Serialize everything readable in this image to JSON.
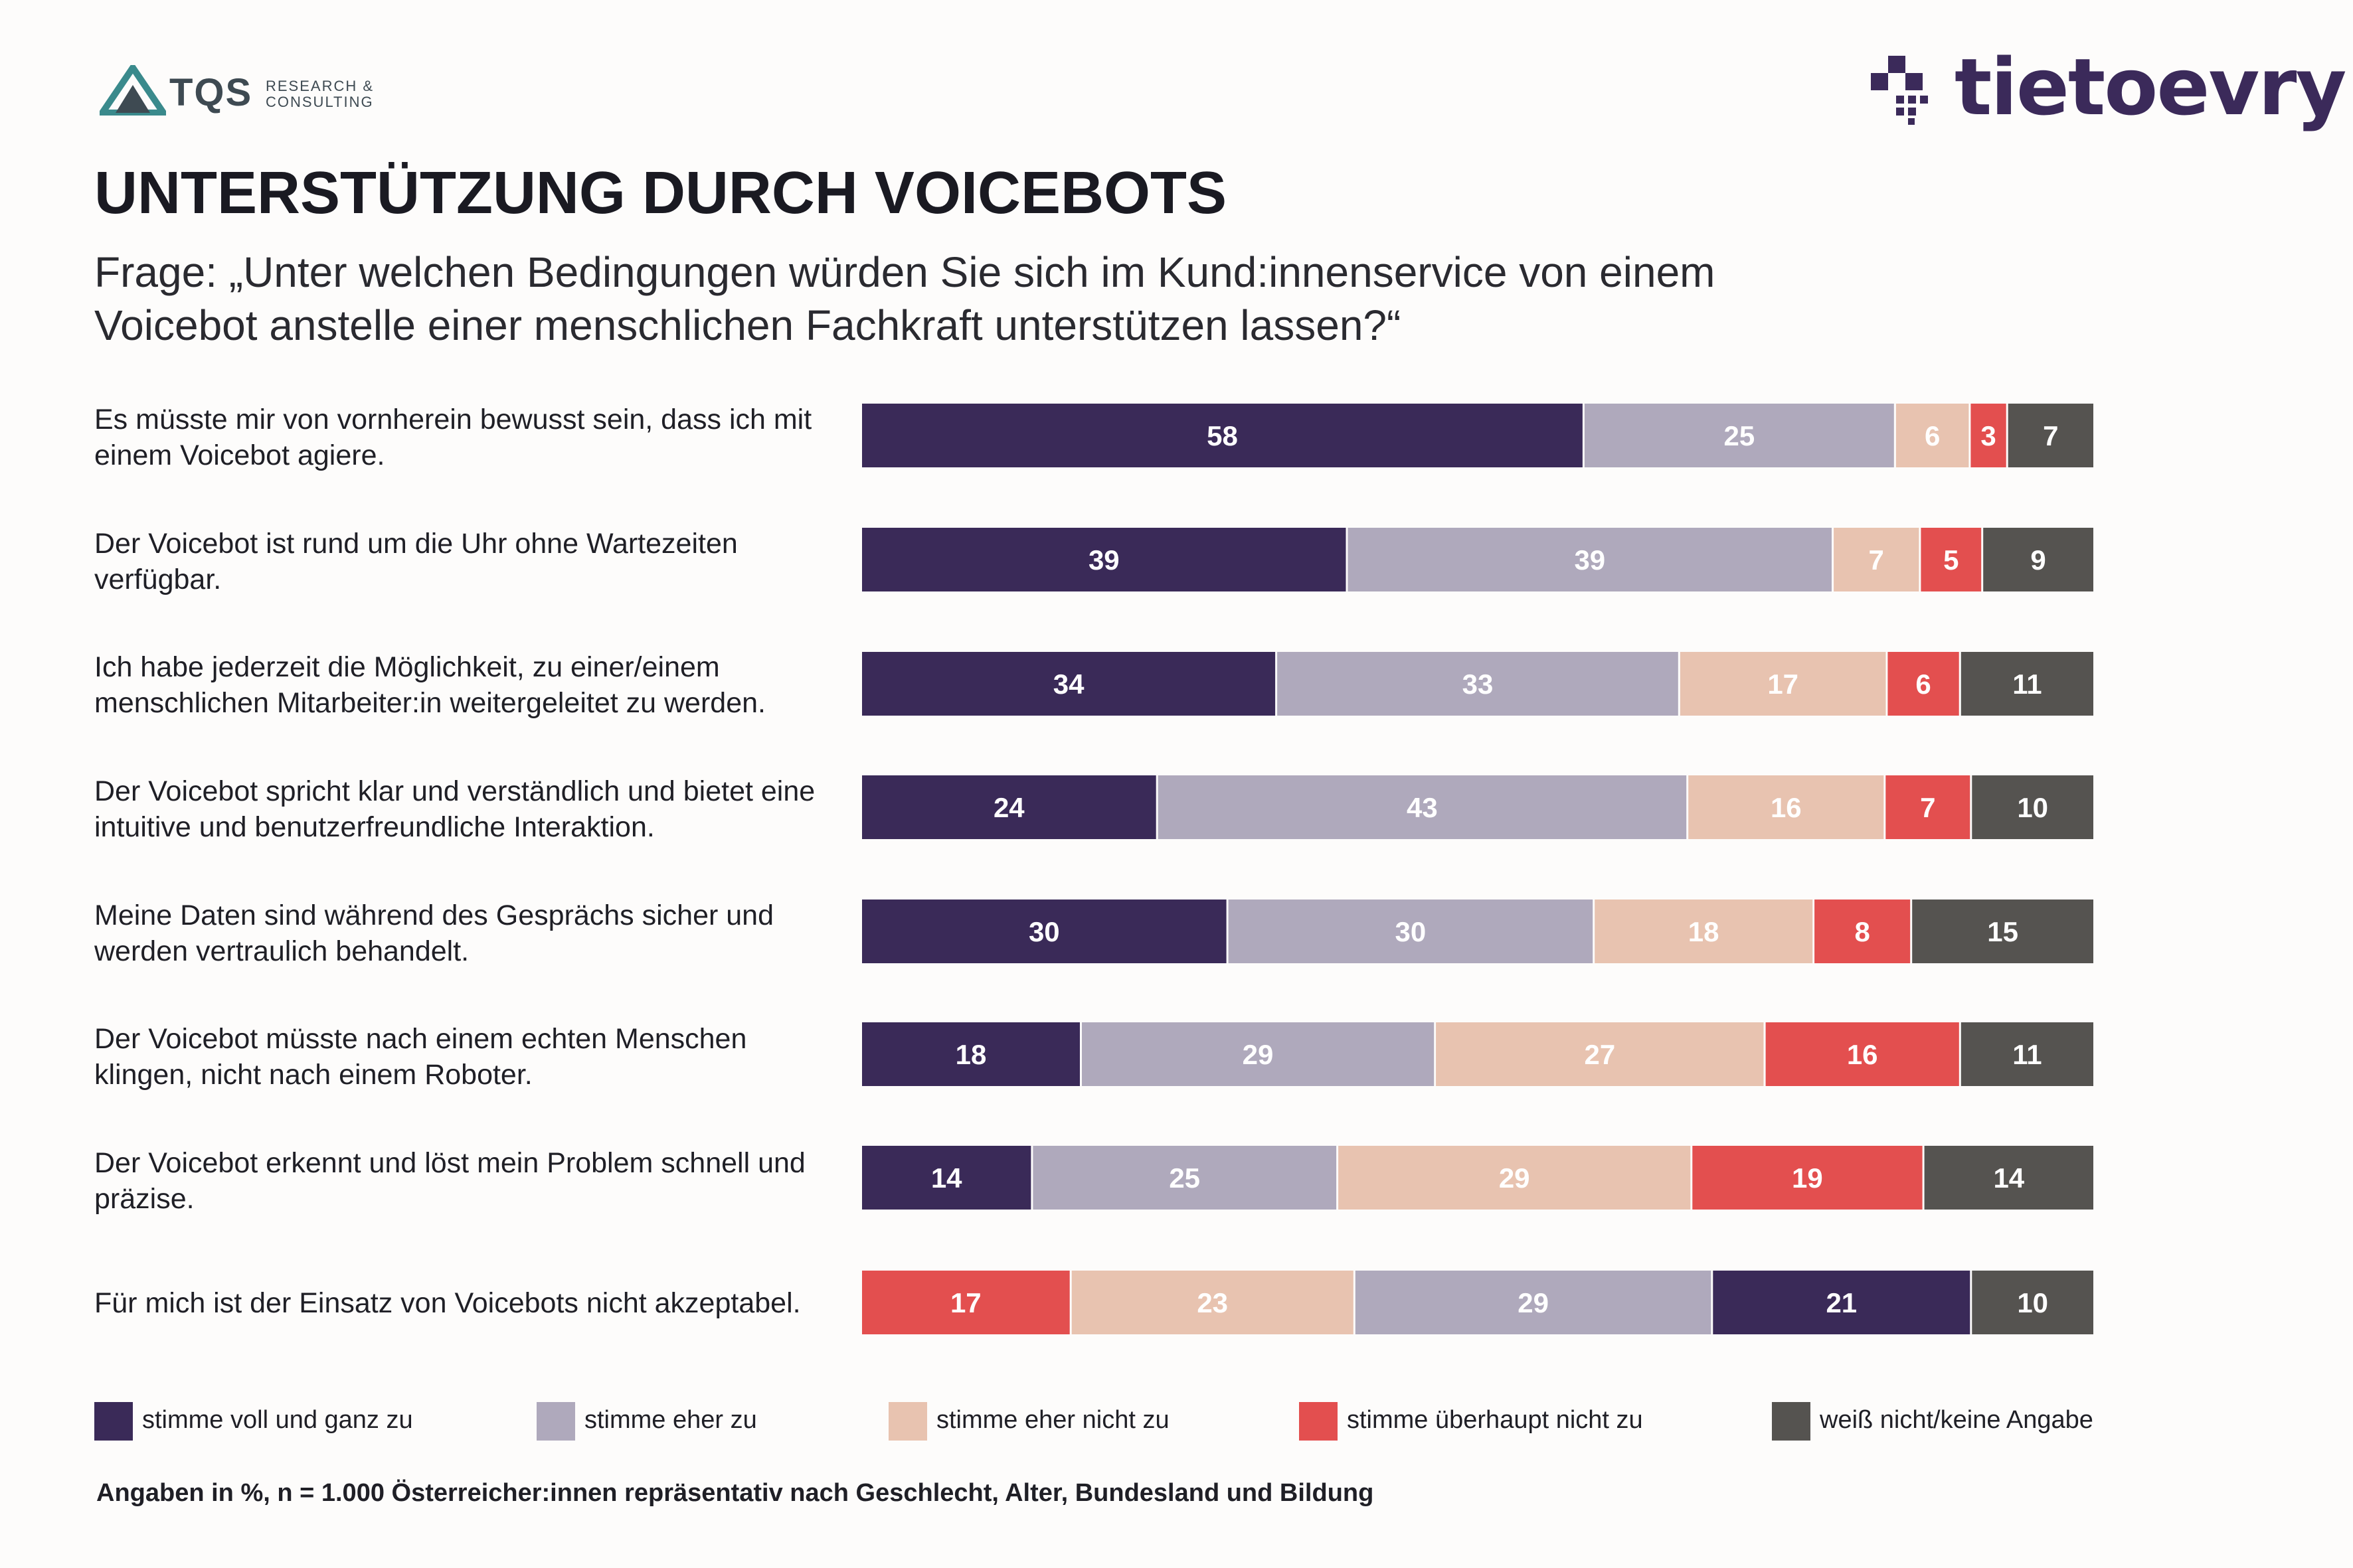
{
  "brand": {
    "tqs_word": "TQS",
    "tqs_sub_1": "RESEARCH &",
    "tqs_sub_2": "CONSULTING",
    "tieto_word": "tietoevry"
  },
  "chart_data": {
    "type": "bar",
    "orientation": "horizontal",
    "stacked": true,
    "title": "UNTERSTÜTZUNG DURCH VOICEBOTS",
    "subtitle": "Frage: „Unter welchen Bedingungen würden Sie sich im Kund:innenservice von einem Voicebot anstelle einer menschlichen Fachkraft unterstützen lassen?“",
    "categories": [
      "Es müsste mir von vornherein bewusst sein, dass ich mit einem Voicebot agiere.",
      "Der Voicebot ist rund um die Uhr ohne Wartezeiten verfügbar.",
      "Ich habe jederzeit die Möglichkeit, zu einer/einem menschlichen Mitarbeiter:in weitergeleitet zu werden.",
      "Der Voicebot spricht klar und verständlich und bietet eine intuitive und benutzerfreundliche Interaktion.",
      "Meine Daten sind während des Gesprächs sicher und werden vertraulich behandelt.",
      "Der Voicebot müsste nach einem echten Menschen klingen, nicht nach einem Roboter.",
      "Der Voicebot erkennt und löst mein Problem schnell und präzise.",
      "Für mich ist der Einsatz von Voicebots nicht akzeptabel."
    ],
    "series": [
      {
        "name": "stimme voll und ganz zu",
        "color": "#3a2a58",
        "values": [
          58,
          39,
          34,
          24,
          30,
          18,
          14,
          21
        ]
      },
      {
        "name": "stimme eher zu",
        "color": "#afa9bc",
        "values": [
          25,
          39,
          33,
          43,
          30,
          29,
          25,
          29
        ]
      },
      {
        "name": "stimme eher nicht zu",
        "color": "#e8c3b0",
        "values": [
          6,
          7,
          17,
          16,
          18,
          27,
          29,
          23
        ]
      },
      {
        "name": "stimme überhaupt nicht zu",
        "color": "#e34f4f",
        "values": [
          3,
          5,
          6,
          7,
          8,
          16,
          19,
          17
        ]
      },
      {
        "name": "weiß nicht/keine Angabe",
        "color": "#555350",
        "values": [
          7,
          9,
          11,
          10,
          15,
          11,
          14,
          10
        ]
      }
    ],
    "reversed_order_rows": [
      7
    ],
    "note": "Angaben in %, n = 1.000 Österreicher:innen repräsentativ nach Geschlecht, Alter, Bundesland und Bildung"
  }
}
